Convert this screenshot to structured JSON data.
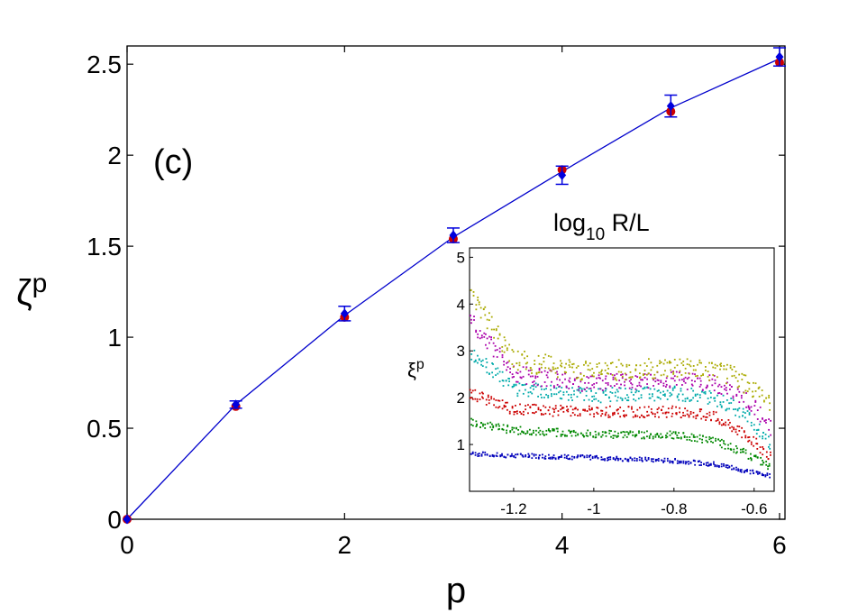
{
  "chart_data": [
    {
      "type": "line",
      "panel_label": "(c)",
      "xlabel": "p",
      "ylabel": "ζ",
      "ylabel_sub": "p",
      "xlim": [
        0,
        6.05
      ],
      "ylim": [
        0,
        2.6
      ],
      "xticks": [
        0,
        2,
        4,
        6
      ],
      "yticks": [
        0,
        0.5,
        1,
        1.5,
        2,
        2.5
      ],
      "ytick_labels": [
        "0",
        "0.5",
        "1",
        "1.5",
        "2",
        "2.5"
      ],
      "grid": false,
      "series": [
        {
          "name": "fit-line",
          "color": "#0000cc",
          "x": [
            0,
            1,
            2,
            3,
            4,
            5,
            6
          ],
          "y": [
            0,
            0.63,
            1.12,
            1.55,
            1.91,
            2.26,
            2.53
          ]
        },
        {
          "name": "red-points",
          "color": "#cc0000",
          "x": [
            0,
            1,
            2,
            3,
            4,
            5,
            6
          ],
          "y": [
            0,
            0.62,
            1.11,
            1.54,
            1.92,
            2.24,
            2.51
          ]
        },
        {
          "name": "blue-points",
          "color": "#0000dd",
          "x": [
            0,
            1,
            2,
            3,
            4,
            5,
            6
          ],
          "y": [
            0,
            0.63,
            1.13,
            1.56,
            1.89,
            2.27,
            2.54
          ],
          "err": [
            0,
            0.02,
            0.04,
            0.04,
            0.05,
            0.06,
            0.05
          ]
        }
      ]
    },
    {
      "type": "scatter",
      "title": "log",
      "title_sub": "10",
      "title_suffix": " R/L",
      "ylabel": "ξ",
      "ylabel_sub": "p",
      "xlim": [
        -1.31,
        -0.55
      ],
      "ylim": [
        0,
        5.2
      ],
      "xticks": [
        -1.2,
        -1,
        -0.8,
        -0.6
      ],
      "xtick_labels": [
        "-1.2",
        "-1",
        "-0.8",
        "-0.6"
      ],
      "yticks": [
        1,
        2,
        3,
        4,
        5
      ],
      "ytick_labels": [
        "1",
        "2",
        "3",
        "4",
        "5"
      ],
      "grid": false,
      "series": [
        {
          "name": "p=1",
          "color": "#0000bb",
          "x": [
            -1.31,
            -1.2,
            -1.0,
            -0.8,
            -0.7,
            -0.65,
            -0.6,
            -0.56
          ],
          "y": [
            0.8,
            0.76,
            0.72,
            0.65,
            0.58,
            0.5,
            0.4,
            0.32
          ]
        },
        {
          "name": "p=2",
          "color": "#008800",
          "x": [
            -1.31,
            -1.2,
            -1.0,
            -0.8,
            -0.7,
            -0.65,
            -0.6,
            -0.56
          ],
          "y": [
            1.5,
            1.3,
            1.22,
            1.2,
            1.08,
            0.92,
            0.72,
            0.52
          ]
        },
        {
          "name": "p=3",
          "color": "#cc0000",
          "x": [
            -1.31,
            -1.2,
            -1.0,
            -0.8,
            -0.7,
            -0.65,
            -0.6,
            -0.56
          ],
          "y": [
            2.1,
            1.75,
            1.7,
            1.7,
            1.6,
            1.35,
            1.05,
            0.75
          ]
        },
        {
          "name": "p=4",
          "color": "#00aaaa",
          "x": [
            -1.31,
            -1.2,
            -1.0,
            -0.8,
            -0.7,
            -0.65,
            -0.6,
            -0.56
          ],
          "y": [
            3.0,
            2.2,
            2.05,
            2.1,
            2.0,
            1.8,
            1.45,
            1.05
          ]
        },
        {
          "name": "p=5",
          "color": "#aa00aa",
          "x": [
            -1.31,
            -1.2,
            -1.0,
            -0.8,
            -0.7,
            -0.65,
            -0.6,
            -0.56
          ],
          "y": [
            3.7,
            2.5,
            2.3,
            2.38,
            2.3,
            2.1,
            1.8,
            1.35
          ]
        },
        {
          "name": "p=6",
          "color": "#aaaa00",
          "x": [
            -1.31,
            -1.2,
            -1.0,
            -0.8,
            -0.7,
            -0.65,
            -0.6,
            -0.56
          ],
          "y": [
            4.3,
            2.8,
            2.55,
            2.65,
            2.55,
            2.45,
            2.2,
            1.9
          ]
        }
      ]
    }
  ]
}
